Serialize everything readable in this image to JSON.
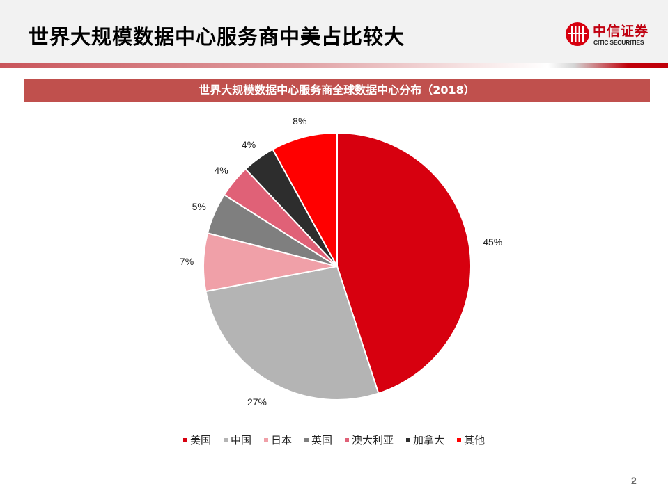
{
  "header": {
    "title": "世界大规模数据中心服务商中美占比较大",
    "logo": {
      "cn": "中信证券",
      "en": "CITIC SECURITIES",
      "icon": "citic-logo-icon"
    }
  },
  "banner": {
    "title": "世界大规模数据中心服务商全球数据中心分布（2018）"
  },
  "legend": [
    {
      "label": "美国",
      "color": "#d7000f"
    },
    {
      "label": "中国",
      "color": "#b4b4b4"
    },
    {
      "label": "日本",
      "color": "#f0a0a8"
    },
    {
      "label": "英国",
      "color": "#7f7f7f"
    },
    {
      "label": "澳大利亚",
      "color": "#e06177"
    },
    {
      "label": "加拿大",
      "color": "#2d2d2d"
    },
    {
      "label": "其他",
      "color": "#ff0000"
    }
  ],
  "labels": [
    "45%",
    "27%",
    "7%",
    "5%",
    "4%",
    "4%",
    "8%"
  ],
  "page_number": "2",
  "chart_data": {
    "type": "pie",
    "title": "世界大规模数据中心服务商全球数据中心分布（2018）",
    "categories": [
      "美国",
      "中国",
      "日本",
      "英国",
      "澳大利亚",
      "加拿大",
      "其他"
    ],
    "values": [
      45,
      27,
      7,
      5,
      4,
      4,
      8
    ],
    "unit": "%",
    "colors": [
      "#d7000f",
      "#b4b4b4",
      "#f0a0a8",
      "#7f7f7f",
      "#e06177",
      "#2d2d2d",
      "#ff0000"
    ],
    "start_angle": "12 o'clock",
    "direction": "clockwise",
    "legend_position": "bottom"
  }
}
